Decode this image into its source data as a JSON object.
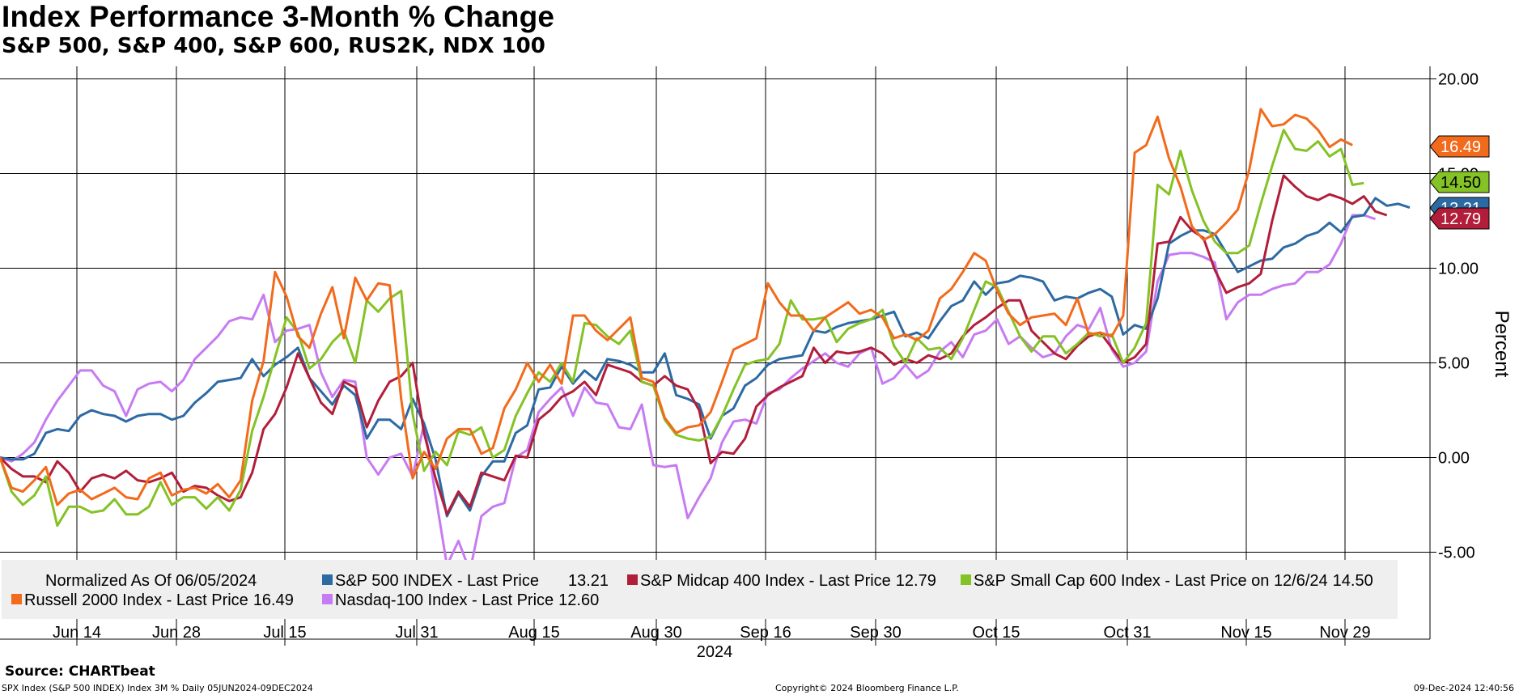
{
  "chart_data": {
    "type": "line",
    "title": "Index Performance 3-Month % Change",
    "subtitle": "S&P 500, S&P 400, S&P 600, RUS2K, NDX 100",
    "ylabel": "Percent",
    "xlabel": "2024",
    "ylim": [
      -5,
      20
    ],
    "yticks": [
      20,
      15,
      10,
      5,
      0,
      -5
    ],
    "ytick_labels": [
      "20.00",
      "15.00",
      "10.00",
      "5.00",
      "0.00",
      "-5.00"
    ],
    "xticks": [
      {
        "date": "2024-06-14",
        "label": "Jun 14"
      },
      {
        "date": "2024-06-28",
        "label": "Jun 28"
      },
      {
        "date": "2024-07-15",
        "label": "Jul 15"
      },
      {
        "date": "2024-07-31",
        "label": "Jul 31"
      },
      {
        "date": "2024-08-15",
        "label": "Aug 15"
      },
      {
        "date": "2024-08-30",
        "label": "Aug 30"
      },
      {
        "date": "2024-09-16",
        "label": "Sep 16"
      },
      {
        "date": "2024-09-30",
        "label": "Sep 30"
      },
      {
        "date": "2024-10-15",
        "label": "Oct 15"
      },
      {
        "date": "2024-10-31",
        "label": "Oct 31"
      },
      {
        "date": "2024-11-15",
        "label": "Nov 15"
      },
      {
        "date": "2024-11-29",
        "label": "Nov 29"
      }
    ],
    "legend": {
      "normalized_label": "Normalized As Of 06/05/2024",
      "placement": "bottom"
    },
    "series": [
      {
        "name": "S&P 500 INDEX - Last Price",
        "legend_value": "13.21",
        "last_value": "13.21",
        "color": "#2d6aa3",
        "values": [
          0.0,
          -0.1,
          -0.1,
          0.2,
          1.3,
          1.5,
          1.4,
          2.2,
          2.5,
          2.3,
          2.2,
          1.9,
          2.2,
          2.3,
          2.3,
          2.0,
          2.2,
          2.9,
          3.4,
          4.0,
          4.1,
          4.2,
          5.2,
          4.3,
          4.9,
          5.3,
          5.8,
          4.2,
          3.5,
          2.8,
          3.8,
          3.3,
          1.0,
          2.0,
          2.0,
          1.5,
          3.1,
          1.8,
          -0.1,
          -3.1,
          -1.9,
          -2.8,
          -1.0,
          -0.2,
          -0.2,
          1.3,
          1.7,
          3.6,
          3.7,
          4.8,
          3.9,
          4.6,
          4.1,
          5.2,
          5.1,
          4.9,
          4.5,
          4.5,
          5.5,
          3.3,
          3.1,
          2.8,
          1.0,
          2.2,
          2.6,
          3.8,
          4.2,
          4.9,
          5.2,
          5.3,
          5.4,
          6.7,
          6.6,
          6.9,
          7.1,
          7.2,
          7.3,
          7.5,
          7.7,
          6.4,
          6.6,
          6.3,
          7.2,
          8.0,
          8.3,
          9.3,
          8.6,
          9.2,
          9.3,
          9.6,
          9.5,
          9.3,
          8.3,
          8.5,
          8.4,
          8.7,
          8.9,
          8.5,
          6.5,
          7.0,
          6.8,
          8.4,
          11.3,
          11.7,
          12.0,
          12.0,
          11.8,
          10.8,
          9.8,
          10.1,
          10.4,
          10.5,
          11.1,
          11.3,
          11.7,
          11.9,
          12.4,
          11.9,
          12.7,
          12.8,
          13.7,
          13.3,
          13.4,
          13.2
        ]
      },
      {
        "name": "S&P Midcap 400 Index - Last Price",
        "legend_value": "12.79",
        "last_value": "12.79",
        "color": "#b21e3a",
        "values": [
          0.0,
          -0.6,
          -1.0,
          -1.0,
          -1.3,
          -0.2,
          -0.8,
          -1.8,
          -1.1,
          -0.9,
          -1.1,
          -0.7,
          -1.2,
          -1.3,
          -1.1,
          -0.8,
          -1.8,
          -1.5,
          -1.6,
          -2.0,
          -2.3,
          -2.1,
          -0.8,
          1.5,
          2.3,
          3.7,
          5.5,
          4.2,
          2.9,
          2.3,
          4.0,
          3.7,
          1.6,
          3.0,
          4.0,
          4.3,
          5.0,
          1.3,
          -1.1,
          -3.0,
          -1.8,
          -2.6,
          -0.8,
          -1.0,
          -1.2,
          0.1,
          0.0,
          2.0,
          2.5,
          3.2,
          3.5,
          4.0,
          3.3,
          4.9,
          4.7,
          4.5,
          4.0,
          3.8,
          4.3,
          3.8,
          3.6,
          2.5,
          -0.3,
          0.3,
          0.2,
          1.0,
          2.7,
          3.3,
          3.7,
          4.0,
          4.3,
          5.8,
          5.0,
          5.6,
          5.5,
          5.6,
          5.8,
          5.5,
          4.9,
          5.2,
          5.0,
          5.4,
          5.2,
          5.5,
          6.4,
          7.0,
          7.4,
          7.9,
          8.3,
          8.3,
          6.7,
          6.1,
          5.5,
          5.2,
          5.9,
          6.4,
          6.6,
          5.8,
          5.0,
          5.3,
          6.0,
          11.3,
          11.4,
          12.7,
          12.0,
          11.6,
          9.9,
          8.7,
          9.0,
          9.2,
          9.7,
          12.5,
          14.9,
          14.3,
          13.8,
          13.6,
          13.9,
          13.7,
          13.4,
          13.8,
          13.0,
          12.8
        ]
      },
      {
        "name": "S&P Small Cap 600 Index - Last Price on 12/6/24",
        "legend_value": "14.50",
        "last_value": "14.50",
        "color": "#84c225",
        "values": [
          0.0,
          -1.8,
          -2.5,
          -2.0,
          -1.0,
          -3.6,
          -2.6,
          -2.6,
          -2.9,
          -2.8,
          -2.2,
          -3.0,
          -3.0,
          -2.6,
          -1.3,
          -2.5,
          -2.1,
          -2.1,
          -2.7,
          -2.1,
          -2.8,
          -1.7,
          1.4,
          3.2,
          5.3,
          7.4,
          6.6,
          4.7,
          5.2,
          6.1,
          6.7,
          5.0,
          8.3,
          7.7,
          8.4,
          8.8,
          2.3,
          -0.7,
          0.3,
          -0.4,
          1.4,
          1.2,
          1.6,
          0.0,
          0.4,
          2.2,
          3.4,
          4.5,
          4.0,
          5.0,
          4.0,
          7.1,
          7.0,
          6.4,
          6.0,
          6.7,
          4.0,
          3.8,
          2.0,
          1.2,
          1.0,
          0.9,
          1.1,
          2.2,
          3.6,
          4.9,
          5.1,
          5.2,
          6.0,
          8.3,
          7.3,
          7.3,
          7.4,
          6.1,
          6.8,
          7.1,
          7.3,
          7.8,
          5.9,
          5.0,
          6.3,
          5.7,
          5.8,
          5.2,
          6.3,
          7.8,
          9.3,
          9.0,
          7.7,
          6.4,
          5.6,
          6.4,
          6.4,
          5.5,
          6.0,
          6.6,
          6.4,
          6.5,
          5.0,
          5.8,
          7.1,
          14.4,
          13.9,
          16.2,
          14.1,
          12.5,
          11.4,
          10.8,
          10.8,
          11.2,
          13.4,
          15.4,
          17.3,
          16.3,
          16.2,
          16.7,
          15.9,
          16.3,
          14.4,
          14.5
        ]
      },
      {
        "name": "Russell 2000 Index - Last Price",
        "legend_value": "16.49",
        "last_value": "16.49",
        "color": "#f26a1b",
        "values": [
          0.0,
          -1.6,
          -1.8,
          -1.2,
          -0.5,
          -2.5,
          -1.9,
          -1.7,
          -2.2,
          -1.9,
          -1.6,
          -2.1,
          -2.2,
          -1.1,
          -0.8,
          -2.0,
          -1.7,
          -1.6,
          -1.9,
          -1.4,
          -2.1,
          -1.2,
          3.0,
          5.1,
          9.8,
          8.5,
          6.4,
          5.8,
          7.6,
          9.0,
          6.3,
          9.5,
          8.3,
          9.2,
          9.1,
          3.1,
          -1.1,
          0.3,
          -0.6,
          1.0,
          1.5,
          1.5,
          0.2,
          0.5,
          2.6,
          3.6,
          5.0,
          4.0,
          4.9,
          3.9,
          7.5,
          7.5,
          6.7,
          6.2,
          6.8,
          7.4,
          4.2,
          4.0,
          2.1,
          1.3,
          1.6,
          1.7,
          2.4,
          4.0,
          5.7,
          6.0,
          6.3,
          9.2,
          8.2,
          7.5,
          7.5,
          6.7,
          7.4,
          7.8,
          8.2,
          7.6,
          7.8,
          7.4,
          6.3,
          6.5,
          6.2,
          6.7,
          8.4,
          8.9,
          9.8,
          10.8,
          10.4,
          8.8,
          7.6,
          7.0,
          7.4,
          7.5,
          7.6,
          7.0,
          8.4,
          6.5,
          6.6,
          6.4,
          7.5,
          16.1,
          16.5,
          18.0,
          15.8,
          14.3,
          12.2,
          11.5,
          11.8,
          12.4,
          13.1,
          15.2,
          18.4,
          17.5,
          17.6,
          18.1,
          17.9,
          17.3,
          16.4,
          16.8,
          16.5
        ]
      },
      {
        "name": "Nasdaq-100 Index - Last Price",
        "legend_value": "12.60",
        "last_value": "12.60",
        "color": "#c77bf2",
        "values": [
          0.0,
          -0.2,
          0.2,
          0.8,
          2.0,
          3.0,
          3.8,
          4.6,
          4.6,
          3.8,
          3.5,
          2.2,
          3.6,
          3.9,
          4.0,
          3.5,
          4.1,
          5.2,
          5.8,
          6.4,
          7.2,
          7.4,
          7.3,
          8.6,
          6.1,
          6.7,
          6.8,
          7.0,
          4.5,
          3.2,
          4.1,
          4.0,
          0.0,
          -0.9,
          0.0,
          0.2,
          -1.0,
          1.8,
          -2.0,
          -5.7,
          -4.4,
          -6.0,
          -3.1,
          -2.6,
          -2.4,
          0.0,
          0.4,
          2.4,
          3.1,
          3.7,
          2.2,
          3.7,
          2.9,
          2.8,
          1.6,
          1.5,
          2.8,
          -0.4,
          -0.5,
          -0.4,
          -3.2,
          -2.1,
          -1.1,
          0.8,
          1.9,
          2.0,
          1.8,
          3.4,
          3.6,
          4.2,
          4.7,
          5.1,
          5.5,
          5.0,
          4.8,
          5.5,
          5.8,
          3.9,
          4.2,
          4.9,
          4.2,
          4.6,
          5.6,
          6.1,
          5.3,
          6.5,
          6.7,
          7.3,
          6.0,
          6.4,
          5.8,
          5.3,
          5.5,
          6.4,
          7.0,
          6.8,
          7.9,
          5.7,
          4.8,
          5.0,
          5.6,
          9.3,
          10.7,
          10.8,
          10.8,
          10.6,
          10.3,
          7.3,
          8.2,
          8.6,
          8.6,
          8.9,
          9.1,
          9.2,
          9.8,
          9.8,
          10.2,
          11.3,
          12.8,
          12.8,
          12.6
        ]
      }
    ]
  },
  "source": "Source: CHARTbeat",
  "footer": {
    "left": "SPX Index (S&P 500 INDEX) Index 3M %  Daily 05JUN2024-09DEC2024",
    "center": "Copyright© 2024 Bloomberg Finance L.P.",
    "right": "09-Dec-2024 12:40:56"
  }
}
